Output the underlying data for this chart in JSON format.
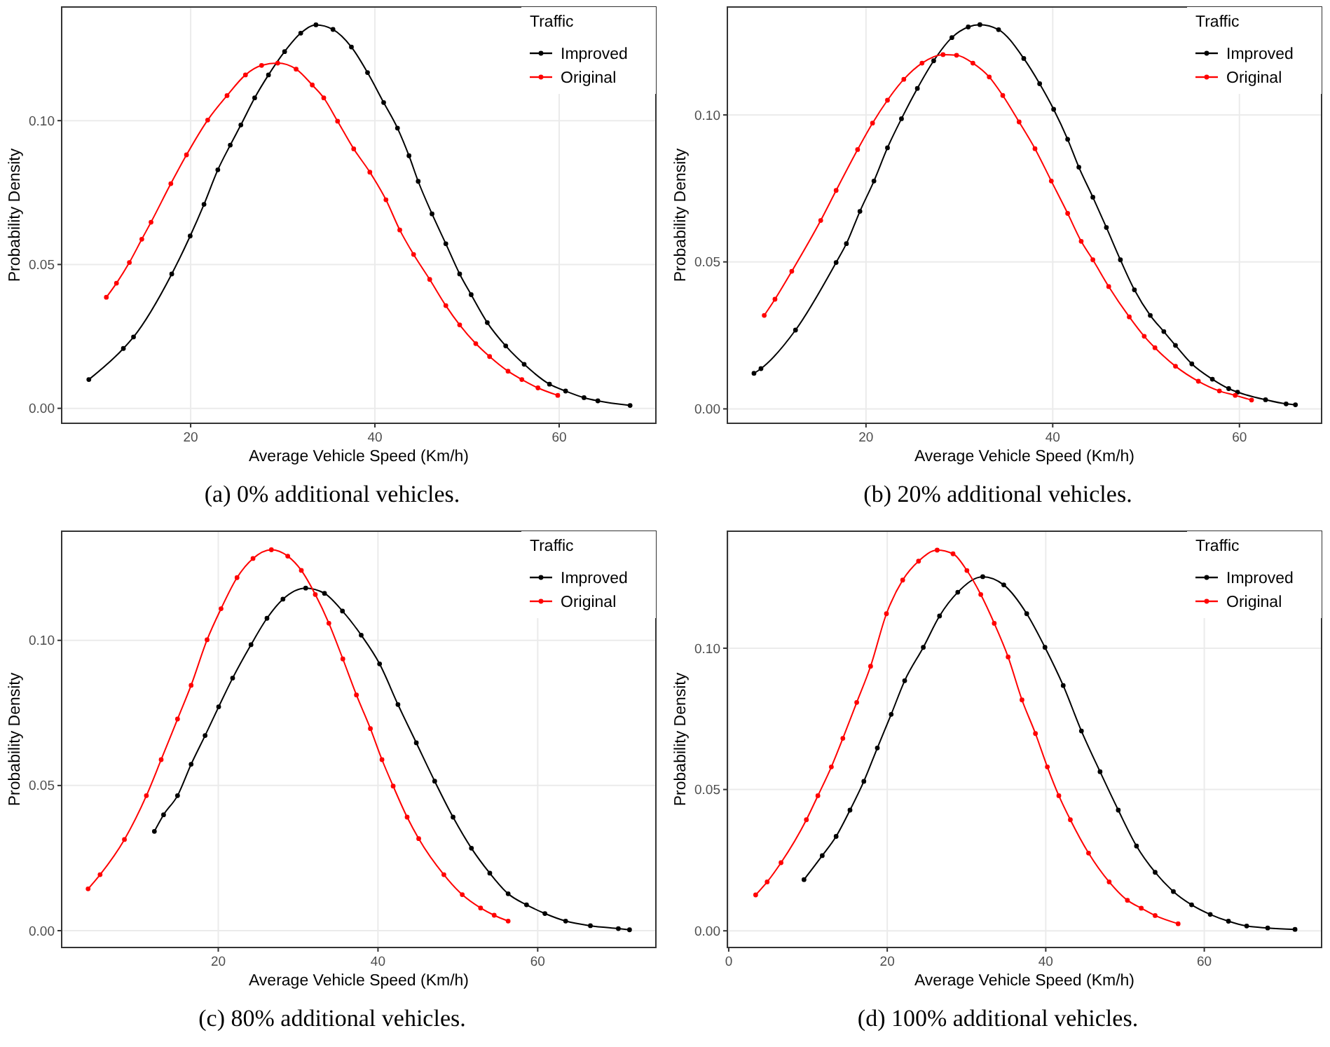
{
  "chart_data": [
    {
      "type": "line",
      "xlabel": "Average Vehicle Speed (Km/h)",
      "ylabel": "Probability Density",
      "legend_title": "Traffic",
      "legend": "top right",
      "grid": true,
      "marker": "circle",
      "line_style": "solid",
      "xlim": [
        6,
        70.5
      ],
      "ylim": [
        -0.0052,
        0.1395
      ],
      "xticks": [
        20,
        40,
        60
      ],
      "yticks": [
        {
          "value": 0,
          "label": "0.00"
        },
        {
          "value": 0.05,
          "label": "0.05"
        },
        {
          "value": 0.1,
          "label": "0.10"
        }
      ],
      "annotations": [
        "(a) 0% additional vehicles."
      ],
      "series": [
        {
          "name": "Improved",
          "color": "#000000",
          "x": [
            8.95,
            12.7,
            13.8,
            17.95,
            19.95,
            21.45,
            22.95,
            24.3,
            25.45,
            26.95,
            28.45,
            30.2,
            31.95,
            33.6,
            35.45,
            37.45,
            39.2,
            40.95,
            42.45,
            43.7,
            44.7,
            46.2,
            47.7,
            49.2,
            50.45,
            52.2,
            54.2,
            56.2,
            58.95,
            60.7,
            62.7,
            64.2,
            67.7
          ],
          "values": [
            0.01,
            0.0208,
            0.0248,
            0.0467,
            0.0599,
            0.0709,
            0.0829,
            0.0915,
            0.0985,
            0.1079,
            0.1159,
            0.124,
            0.1304,
            0.1333,
            0.1317,
            0.1256,
            0.1167,
            0.1063,
            0.0974,
            0.0878,
            0.0789,
            0.0676,
            0.0572,
            0.0467,
            0.0395,
            0.0298,
            0.0217,
            0.0153,
            0.0084,
            0.006,
            0.0037,
            0.0026,
            0.001
          ]
        },
        {
          "name": "Original",
          "color": "#ff0000",
          "x": [
            10.85,
            11.95,
            13.35,
            14.7,
            15.7,
            17.85,
            19.55,
            21.85,
            23.95,
            25.95,
            27.7,
            29.45,
            31.45,
            33.2,
            34.45,
            35.95,
            37.7,
            39.45,
            41.2,
            42.7,
            44.2,
            45.95,
            47.7,
            49.2,
            50.95,
            52.45,
            54.45,
            55.95,
            57.7,
            59.85
          ],
          "values": [
            0.0386,
            0.0435,
            0.0507,
            0.0588,
            0.0647,
            0.0781,
            0.0881,
            0.1002,
            0.1087,
            0.1159,
            0.1192,
            0.12,
            0.1179,
            0.1124,
            0.1079,
            0.0998,
            0.0902,
            0.0821,
            0.0725,
            0.062,
            0.0535,
            0.0448,
            0.0357,
            0.029,
            0.0225,
            0.018,
            0.0129,
            0.01,
            0.0071,
            0.0045
          ]
        }
      ]
    },
    {
      "type": "line",
      "xlabel": "Average Vehicle Speed (Km/h)",
      "ylabel": "Probability Density",
      "legend_title": "Traffic",
      "legend": "top right",
      "grid": true,
      "marker": "circle",
      "line_style": "solid",
      "xlim": [
        5.15,
        68.8
      ],
      "ylim": [
        -0.0049,
        0.1367
      ],
      "xticks": [
        20,
        40,
        60
      ],
      "yticks": [
        {
          "value": 0,
          "label": "0.00"
        },
        {
          "value": 0.05,
          "label": "0.05"
        },
        {
          "value": 0.1,
          "label": "0.10"
        }
      ],
      "annotations": [
        "(b) 20% additional vehicles."
      ],
      "series": [
        {
          "name": "Improved",
          "color": "#000000",
          "x": [
            8.0,
            8.75,
            12.45,
            16.8,
            17.9,
            19.35,
            20.85,
            22.3,
            23.8,
            25.5,
            27.25,
            29.2,
            30.95,
            32.2,
            34.2,
            36.9,
            38.6,
            40.1,
            41.6,
            42.8,
            44.3,
            45.75,
            47.25,
            48.75,
            50.45,
            51.9,
            53.15,
            54.9,
            57.1,
            58.85,
            59.8,
            62.8,
            65.0,
            66.0
          ],
          "values": [
            0.0121,
            0.0137,
            0.0268,
            0.0498,
            0.0562,
            0.0672,
            0.0775,
            0.0888,
            0.0987,
            0.109,
            0.1184,
            0.1263,
            0.1299,
            0.1307,
            0.129,
            0.1192,
            0.1106,
            0.1019,
            0.0917,
            0.0822,
            0.072,
            0.0617,
            0.0507,
            0.0405,
            0.0318,
            0.0263,
            0.0216,
            0.0153,
            0.0101,
            0.0069,
            0.0057,
            0.0031,
            0.0017,
            0.0014
          ]
        },
        {
          "name": "Original",
          "color": "#ff0000",
          "x": [
            9.1,
            10.25,
            12.05,
            15.15,
            16.8,
            19.1,
            20.7,
            22.3,
            24.05,
            26.0,
            28.25,
            29.7,
            31.45,
            33.2,
            34.65,
            36.4,
            38.1,
            39.85,
            41.6,
            43.05,
            44.3,
            46.0,
            48.2,
            49.8,
            50.95,
            53.15,
            55.6,
            57.85,
            59.55,
            61.3
          ],
          "values": [
            0.0318,
            0.0373,
            0.0468,
            0.0641,
            0.0743,
            0.0882,
            0.0972,
            0.105,
            0.1121,
            0.1176,
            0.1205,
            0.1203,
            0.1176,
            0.1129,
            0.1066,
            0.0976,
            0.0885,
            0.0775,
            0.0665,
            0.057,
            0.0507,
            0.0416,
            0.0313,
            0.0247,
            0.0208,
            0.0145,
            0.0094,
            0.0061,
            0.0046,
            0.003
          ]
        }
      ]
    },
    {
      "type": "line",
      "xlabel": "Average Vehicle Speed (Km/h)",
      "ylabel": "Probability Density",
      "legend_title": "Traffic",
      "legend": "top right",
      "grid": true,
      "marker": "circle",
      "line_style": "solid",
      "xlim": [
        0.39,
        74.8
      ],
      "ylim": [
        -0.0058,
        0.1376
      ],
      "xticks": [
        20,
        40,
        60
      ],
      "yticks": [
        {
          "value": 0,
          "label": "0.00"
        },
        {
          "value": 0.05,
          "label": "0.05"
        },
        {
          "value": 0.1,
          "label": "0.10"
        }
      ],
      "annotations": [
        "(c) 80% additional vehicles."
      ],
      "series": [
        {
          "name": "Improved",
          "color": "#000000",
          "x": [
            12.0,
            13.15,
            14.9,
            16.6,
            18.35,
            20.05,
            21.8,
            24.1,
            26.1,
            28.1,
            30.95,
            33.3,
            35.55,
            37.9,
            40.2,
            42.5,
            44.8,
            47.1,
            49.4,
            51.7,
            54.0,
            56.3,
            58.6,
            60.9,
            63.5,
            66.6,
            70.1,
            71.5
          ],
          "values": [
            0.0342,
            0.0399,
            0.0465,
            0.0573,
            0.0672,
            0.0771,
            0.087,
            0.0985,
            0.1076,
            0.1142,
            0.118,
            0.1162,
            0.1101,
            0.1018,
            0.0919,
            0.0779,
            0.0647,
            0.0515,
            0.0391,
            0.0284,
            0.0198,
            0.0127,
            0.0089,
            0.0059,
            0.0033,
            0.0017,
            0.0007,
            0.0003
          ]
        },
        {
          "name": "Original",
          "color": "#ff0000",
          "x": [
            3.7,
            5.2,
            8.25,
            11.0,
            12.85,
            14.9,
            16.6,
            18.6,
            20.35,
            22.35,
            24.35,
            26.65,
            28.7,
            30.4,
            32.15,
            33.85,
            35.6,
            37.3,
            39.05,
            40.5,
            41.9,
            43.65,
            45.1,
            48.25,
            50.55,
            52.85,
            54.55,
            56.3
          ],
          "values": [
            0.0144,
            0.0193,
            0.0314,
            0.0465,
            0.0589,
            0.0729,
            0.0845,
            0.1002,
            0.1109,
            0.1216,
            0.1282,
            0.1312,
            0.129,
            0.1241,
            0.1158,
            0.1059,
            0.0936,
            0.0812,
            0.0696,
            0.0589,
            0.0498,
            0.0391,
            0.0317,
            0.0193,
            0.0124,
            0.0078,
            0.0053,
            0.0033
          ]
        }
      ]
    },
    {
      "type": "line",
      "xlabel": "Average Vehicle Speed (Km/h)",
      "ylabel": "Probability Density",
      "legend_title": "Traffic",
      "legend": "top right",
      "grid": true,
      "marker": "circle",
      "line_style": "solid",
      "xlim": [
        -0.17,
        74.8
      ],
      "ylim": [
        -0.0059,
        0.1414
      ],
      "xticks": [
        0,
        20,
        40,
        60
      ],
      "yticks": [
        {
          "value": 0,
          "label": "0.00"
        },
        {
          "value": 0.05,
          "label": "0.05"
        },
        {
          "value": 0.1,
          "label": "0.10"
        }
      ],
      "annotations": [
        "(d) 100% additional vehicles."
      ],
      "series": [
        {
          "name": "Improved",
          "color": "#000000",
          "x": [
            9.5,
            11.8,
            13.55,
            15.3,
            17.05,
            18.75,
            20.5,
            22.2,
            24.55,
            26.6,
            28.9,
            32.05,
            34.7,
            37.6,
            39.9,
            42.2,
            44.5,
            46.85,
            49.15,
            51.45,
            53.8,
            56.1,
            58.4,
            60.75,
            63.05,
            65.35,
            68.0,
            71.45
          ],
          "values": [
            0.0181,
            0.0266,
            0.0334,
            0.0427,
            0.0529,
            0.0647,
            0.0766,
            0.0885,
            0.1003,
            0.1114,
            0.1198,
            0.1253,
            0.1224,
            0.1122,
            0.1003,
            0.0868,
            0.0707,
            0.0563,
            0.0427,
            0.03,
            0.0207,
            0.0139,
            0.0092,
            0.0058,
            0.0034,
            0.0017,
            0.001,
            0.0005
          ]
        },
        {
          "name": "Original",
          "color": "#ff0000",
          "x": [
            3.4,
            4.85,
            6.6,
            9.8,
            11.25,
            12.95,
            14.4,
            16.15,
            17.9,
            19.9,
            21.95,
            23.95,
            26.3,
            28.3,
            30.05,
            31.8,
            33.5,
            35.25,
            37.0,
            38.7,
            40.2,
            41.65,
            43.1,
            45.4,
            48.0,
            50.3,
            52.05,
            53.8,
            56.7
          ],
          "values": [
            0.0127,
            0.0173,
            0.0241,
            0.0393,
            0.0478,
            0.058,
            0.0681,
            0.0808,
            0.0936,
            0.1122,
            0.1241,
            0.1308,
            0.1347,
            0.1334,
            0.1275,
            0.119,
            0.1088,
            0.0969,
            0.0817,
            0.0698,
            0.058,
            0.0478,
            0.0393,
            0.0275,
            0.0173,
            0.0108,
            0.008,
            0.0054,
            0.0025
          ]
        }
      ]
    }
  ]
}
